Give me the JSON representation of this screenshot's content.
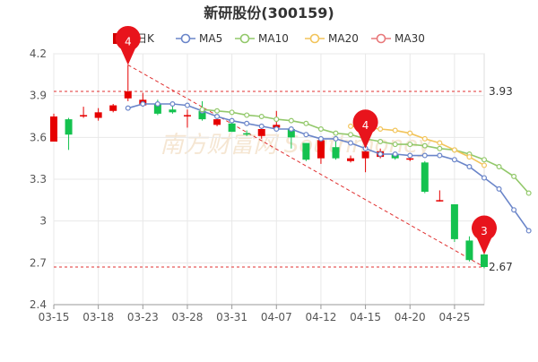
{
  "chart_data": {
    "type": "candlestick",
    "title": "新研股份(300159)",
    "legend": {
      "placement": "top-center",
      "items": [
        {
          "name": "日K",
          "color": "#d00000",
          "style": "candle"
        },
        {
          "name": "MA5",
          "color": "#6a85c9",
          "style": "line"
        },
        {
          "name": "MA10",
          "color": "#92c86a",
          "style": "line"
        },
        {
          "name": "MA20",
          "color": "#f2c45a",
          "style": "line"
        },
        {
          "name": "MA30",
          "color": "#e8787a",
          "style": "line"
        }
      ]
    },
    "y_ticks": [
      "2.4",
      "2.7",
      "3",
      "3.3",
      "3.6",
      "3.9",
      "4.2"
    ],
    "y_tick_values": [
      2.4,
      2.7,
      3.0,
      3.3,
      3.6,
      3.9,
      4.2
    ],
    "ylim": [
      2.4,
      4.2
    ],
    "x_ticks": [
      {
        "label": "03-15",
        "index": 0
      },
      {
        "label": "03-18",
        "index": 3
      },
      {
        "label": "03-23",
        "index": 6
      },
      {
        "label": "03-28",
        "index": 9
      },
      {
        "label": "03-31",
        "index": 12
      },
      {
        "label": "04-07",
        "index": 15
      },
      {
        "label": "04-12",
        "index": 18
      },
      {
        "label": "04-15",
        "index": 21
      },
      {
        "label": "04-20",
        "index": 24
      },
      {
        "label": "04-25",
        "index": 27
      }
    ],
    "candles": [
      {
        "o": 3.57,
        "c": 3.75,
        "h": 3.77,
        "l": 3.57
      },
      {
        "o": 3.73,
        "c": 3.62,
        "h": 3.74,
        "l": 3.51
      },
      {
        "o": 3.75,
        "c": 3.76,
        "h": 3.82,
        "l": 3.74
      },
      {
        "o": 3.74,
        "c": 3.78,
        "h": 3.81,
        "l": 3.72
      },
      {
        "o": 3.79,
        "c": 3.83,
        "h": 3.84,
        "l": 3.78
      },
      {
        "o": 3.88,
        "c": 3.93,
        "h": 4.12,
        "l": 3.86
      },
      {
        "o": 3.83,
        "c": 3.87,
        "h": 3.92,
        "l": 3.82
      },
      {
        "o": 3.84,
        "c": 3.77,
        "h": 3.87,
        "l": 3.76
      },
      {
        "o": 3.8,
        "c": 3.78,
        "h": 3.83,
        "l": 3.77
      },
      {
        "o": 3.76,
        "c": 3.76,
        "h": 3.8,
        "l": 3.67
      },
      {
        "o": 3.79,
        "c": 3.73,
        "h": 3.86,
        "l": 3.72
      },
      {
        "o": 3.69,
        "c": 3.73,
        "h": 3.74,
        "l": 3.68
      },
      {
        "o": 3.7,
        "c": 3.64,
        "h": 3.72,
        "l": 3.64
      },
      {
        "o": 3.63,
        "c": 3.62,
        "h": 3.65,
        "l": 3.61
      },
      {
        "o": 3.61,
        "c": 3.66,
        "h": 3.68,
        "l": 3.59
      },
      {
        "o": 3.67,
        "c": 3.69,
        "h": 3.79,
        "l": 3.66
      },
      {
        "o": 3.66,
        "c": 3.6,
        "h": 3.67,
        "l": 3.52
      },
      {
        "o": 3.56,
        "c": 3.44,
        "h": 3.56,
        "l": 3.43
      },
      {
        "o": 3.45,
        "c": 3.58,
        "h": 3.6,
        "l": 3.41
      },
      {
        "o": 3.53,
        "c": 3.45,
        "h": 3.57,
        "l": 3.44
      },
      {
        "o": 3.43,
        "c": 3.45,
        "h": 3.47,
        "l": 3.42
      },
      {
        "o": 3.45,
        "c": 3.5,
        "h": 3.52,
        "l": 3.35
      },
      {
        "o": 3.46,
        "c": 3.5,
        "h": 3.52,
        "l": 3.45
      },
      {
        "o": 3.48,
        "c": 3.45,
        "h": 3.49,
        "l": 3.44
      },
      {
        "o": 3.44,
        "c": 3.45,
        "h": 3.46,
        "l": 3.43
      },
      {
        "o": 3.42,
        "c": 3.21,
        "h": 3.43,
        "l": 3.2
      },
      {
        "o": 3.15,
        "c": 3.15,
        "h": 3.22,
        "l": 3.14
      },
      {
        "o": 3.12,
        "c": 2.87,
        "h": 3.12,
        "l": 2.85
      },
      {
        "o": 2.86,
        "c": 2.72,
        "h": 2.89,
        "l": 2.71
      },
      {
        "o": 2.76,
        "c": 2.67,
        "h": 2.77,
        "l": 2.66
      }
    ],
    "ma_series": [
      {
        "name": "MA5",
        "start": 5,
        "values": [
          3.81,
          3.84,
          3.84,
          3.84,
          3.83,
          3.79,
          3.75,
          3.72,
          3.7,
          3.68,
          3.66,
          3.66,
          3.62,
          3.59,
          3.59,
          3.56,
          3.52,
          3.48,
          3.48,
          3.47,
          3.47,
          3.47,
          3.44,
          3.39,
          3.31,
          3.23,
          3.08,
          2.93
        ]
      },
      {
        "name": "MA10",
        "start": 10,
        "values": [
          3.8,
          3.79,
          3.78,
          3.76,
          3.75,
          3.73,
          3.72,
          3.7,
          3.66,
          3.63,
          3.62,
          3.59,
          3.57,
          3.55,
          3.55,
          3.54,
          3.52,
          3.51,
          3.48,
          3.44,
          3.39,
          3.32,
          3.2
        ]
      },
      {
        "name": "MA20",
        "start": 20,
        "values": [
          3.68,
          3.67,
          3.66,
          3.65,
          3.63,
          3.59,
          3.56,
          3.51,
          3.46,
          3.4
        ]
      }
    ],
    "price_lines": [
      {
        "value": 3.93,
        "label": "3.93"
      },
      {
        "value": 2.67,
        "label": "2.67"
      }
    ],
    "markers": [
      {
        "label": "4",
        "index": 5,
        "value": 4.12
      },
      {
        "label": "4",
        "index": 21,
        "value": 3.52
      },
      {
        "label": "3",
        "index": 29,
        "value": 2.76
      }
    ],
    "trend_line": {
      "from_index": 5,
      "from_value": 4.12,
      "to_index": 29,
      "to_value": 2.67
    },
    "watermark": "南方财富网 Southmoney"
  },
  "colors": {
    "up": "#e60000",
    "down": "#14c24f",
    "grid": "#e8e8e8",
    "axis_text": "#555555",
    "marker": "#e8141c",
    "dashed": "#e03030"
  }
}
